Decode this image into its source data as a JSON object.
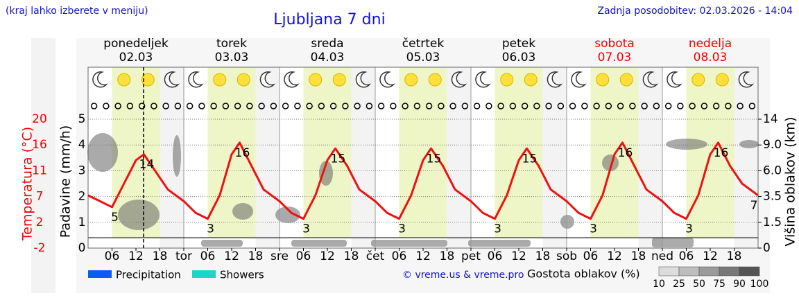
{
  "chart_data": {
    "type": "line",
    "title": "Ljubljana 7 dni",
    "subtitle_left": "(kraj lahko izberete v meniju)",
    "updated": "Zadnja posodobitev: 02.03.2026 - 14:04",
    "days": [
      {
        "name": "ponedeljek",
        "date": "02.03",
        "weekend": false
      },
      {
        "name": "torek",
        "date": "03.03",
        "weekend": false
      },
      {
        "name": "sreda",
        "date": "04.03",
        "weekend": false
      },
      {
        "name": "četrtek",
        "date": "05.03",
        "weekend": false
      },
      {
        "name": "petek",
        "date": "06.03",
        "weekend": false
      },
      {
        "name": "sobota",
        "date": "07.03",
        "weekend": true
      },
      {
        "name": "nedelja",
        "date": "08.03",
        "weekend": true
      }
    ],
    "weekend_color": "#ee0000",
    "xlim": [
      0,
      168
    ],
    "xticks": [
      {
        "value": 6,
        "label": "06"
      },
      {
        "value": 12,
        "label": "12"
      },
      {
        "value": 18,
        "label": "18"
      },
      {
        "value": 24,
        "label": "tor"
      },
      {
        "value": 30,
        "label": "06"
      },
      {
        "value": 36,
        "label": "12"
      },
      {
        "value": 42,
        "label": "18"
      },
      {
        "value": 48,
        "label": "sre"
      },
      {
        "value": 54,
        "label": "06"
      },
      {
        "value": 60,
        "label": "12"
      },
      {
        "value": 66,
        "label": "18"
      },
      {
        "value": 72,
        "label": "čet"
      },
      {
        "value": 78,
        "label": "06"
      },
      {
        "value": 84,
        "label": "12"
      },
      {
        "value": 90,
        "label": "18"
      },
      {
        "value": 96,
        "label": "pet"
      },
      {
        "value": 102,
        "label": "06"
      },
      {
        "value": 108,
        "label": "12"
      },
      {
        "value": 114,
        "label": "18"
      },
      {
        "value": 120,
        "label": "sob"
      },
      {
        "value": 126,
        "label": "06"
      },
      {
        "value": 132,
        "label": "12"
      },
      {
        "value": 138,
        "label": "18"
      },
      {
        "value": 144,
        "label": "ned"
      },
      {
        "value": 150,
        "label": "06"
      },
      {
        "value": 156,
        "label": "12"
      },
      {
        "value": 162,
        "label": "18"
      }
    ],
    "temp_label": "Temperatura (°C)",
    "temp_color": "#ee0000",
    "temp_lim": [
      -2,
      20
    ],
    "temp_ticks": [
      {
        "value": 20,
        "label": "20"
      },
      {
        "value": 15.6,
        "label": "16"
      },
      {
        "value": 11.2,
        "label": "11"
      },
      {
        "value": 6.8,
        "label": "7"
      },
      {
        "value": 2.4,
        "label": "2"
      },
      {
        "value": -2,
        "label": "-2"
      }
    ],
    "ylabel": "Padavine (mm/h)",
    "ylim": [
      0,
      5
    ],
    "yticks": [
      0,
      1,
      2,
      3,
      4,
      5
    ],
    "grid": true,
    "y2label": "Višina oblakov (km)",
    "y2ticks": [
      0,
      1.5,
      3.5,
      {
        "value": 6,
        "label": "6.0"
      },
      {
        "value": 9,
        "label": "9.0"
      },
      14
    ],
    "series": [
      {
        "name": "Temperatura",
        "color": "#ee1111",
        "x": [
          0,
          3,
          6,
          9,
          12,
          14,
          17,
          20,
          24,
          27,
          30,
          33,
          36,
          38,
          41,
          44,
          48,
          51,
          54,
          57,
          60,
          62,
          65,
          68,
          72,
          75,
          78,
          81,
          84,
          86,
          89,
          92,
          96,
          99,
          102,
          105,
          108,
          110,
          113,
          116,
          120,
          123,
          126,
          129,
          132,
          134,
          137,
          140,
          144,
          147,
          150,
          153,
          156,
          158,
          161,
          164,
          168
        ],
        "values": [
          7,
          6,
          5,
          9,
          13,
          14,
          11,
          8,
          6,
          4,
          3,
          7,
          14,
          16,
          12,
          8,
          6,
          4,
          3,
          7,
          13,
          15,
          12,
          8,
          6,
          4,
          3,
          7,
          13,
          15,
          12,
          8,
          6,
          4,
          3,
          7,
          13,
          15,
          12,
          8,
          6,
          4,
          3,
          7,
          14,
          16,
          12,
          8,
          6,
          4,
          3,
          7,
          14,
          16,
          12,
          9,
          7
        ]
      }
    ],
    "extremes": [
      {
        "x": 6,
        "value": 5
      },
      {
        "x": 14,
        "value": 14
      },
      {
        "x": 30,
        "value": 3
      },
      {
        "x": 38,
        "value": 16
      },
      {
        "x": 54,
        "value": 3
      },
      {
        "x": 62,
        "value": 15
      },
      {
        "x": 78,
        "value": 3
      },
      {
        "x": 86,
        "value": 15
      },
      {
        "x": 102,
        "value": 3
      },
      {
        "x": 110,
        "value": 15
      },
      {
        "x": 126,
        "value": 3
      },
      {
        "x": 134,
        "value": 16
      },
      {
        "x": 150,
        "value": 3
      },
      {
        "x": 158,
        "value": 16
      },
      {
        "x": 168,
        "value": 7
      }
    ],
    "legend": [
      {
        "name": "Precipitation",
        "color": "#0a5cf5"
      },
      {
        "name": "Showers",
        "color": "#1cd6c8"
      }
    ],
    "credit": "© vreme.us & vreme.pro",
    "cloud_scale_label": "Gostota oblakov (%)",
    "cloud_scale": [
      10,
      25,
      50,
      75,
      90,
      100
    ],
    "cloud_scale_colors": [
      "#dcdcdc",
      "#bdbdbd",
      "#9a9a9a",
      "#787878",
      "#555555"
    ]
  }
}
